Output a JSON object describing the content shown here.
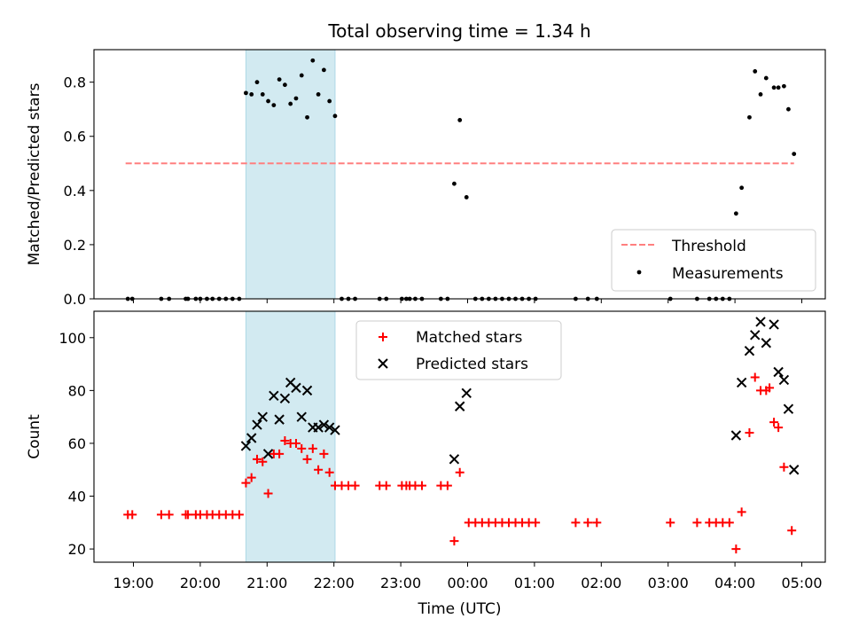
{
  "chart_data": [
    {
      "type": "scatter",
      "title": "Total observing time = 1.34 h",
      "xlabel": "",
      "ylabel": "Matched/Predicted stars",
      "ylim": [
        0,
        0.92
      ],
      "yticks": [
        0.0,
        0.2,
        0.4,
        0.6,
        0.8
      ],
      "ytick_labels": [
        "0.0",
        "0.2",
        "0.4",
        "0.6",
        "0.8"
      ],
      "shaded_span": {
        "x0": "20:41",
        "x1": "22:01",
        "color": "#add8e6"
      },
      "threshold": {
        "name": "Threshold",
        "y": 0.5,
        "x0": "18:53",
        "x1": "04:53",
        "color": "#ff7f7f",
        "style": "dashed"
      },
      "series": [
        {
          "name": "Measurements",
          "marker": "dot",
          "color": "#000000",
          "points": [
            [
              "18:55",
              0
            ],
            [
              "18:59",
              0
            ],
            [
              "19:25",
              0
            ],
            [
              "19:32",
              0
            ],
            [
              "19:47",
              0
            ],
            [
              "19:49",
              0
            ],
            [
              "19:56",
              0
            ],
            [
              "20:00",
              0
            ],
            [
              "20:06",
              0
            ],
            [
              "20:11",
              0
            ],
            [
              "20:17",
              0
            ],
            [
              "20:23",
              0
            ],
            [
              "20:29",
              0
            ],
            [
              "20:35",
              0
            ],
            [
              "20:41",
              0.76
            ],
            [
              "20:46",
              0.755
            ],
            [
              "20:51",
              0.8
            ],
            [
              "20:56",
              0.755
            ],
            [
              "21:01",
              0.73
            ],
            [
              "21:06",
              0.715
            ],
            [
              "21:11",
              0.81
            ],
            [
              "21:16",
              0.79
            ],
            [
              "21:21",
              0.72
            ],
            [
              "21:26",
              0.74
            ],
            [
              "21:31",
              0.825
            ],
            [
              "21:36",
              0.67
            ],
            [
              "21:41",
              0.88
            ],
            [
              "21:46",
              0.755
            ],
            [
              "21:51",
              0.845
            ],
            [
              "21:56",
              0.73
            ],
            [
              "22:01",
              0.675
            ],
            [
              "22:07",
              0
            ],
            [
              "22:13",
              0
            ],
            [
              "22:19",
              0
            ],
            [
              "22:41",
              0
            ],
            [
              "22:47",
              0
            ],
            [
              "23:01",
              0
            ],
            [
              "23:05",
              0
            ],
            [
              "23:08",
              0
            ],
            [
              "23:13",
              0
            ],
            [
              "23:19",
              0
            ],
            [
              "23:36",
              0
            ],
            [
              "23:42",
              0
            ],
            [
              "23:48",
              0.425
            ],
            [
              "23:53",
              0.66
            ],
            [
              "23:59",
              0.375
            ],
            [
              "00:07",
              0
            ],
            [
              "00:13",
              0
            ],
            [
              "00:19",
              0
            ],
            [
              "00:25",
              0
            ],
            [
              "00:31",
              0
            ],
            [
              "00:37",
              0
            ],
            [
              "00:43",
              0
            ],
            [
              "00:49",
              0
            ],
            [
              "00:55",
              0
            ],
            [
              "01:01",
              0
            ],
            [
              "01:37",
              0
            ],
            [
              "01:48",
              0
            ],
            [
              "01:56",
              0
            ],
            [
              "03:02",
              0
            ],
            [
              "03:26",
              0
            ],
            [
              "03:37",
              0
            ],
            [
              "03:43",
              0
            ],
            [
              "03:49",
              0
            ],
            [
              "03:55",
              0
            ],
            [
              "04:01",
              0.315
            ],
            [
              "04:06",
              0.41
            ],
            [
              "04:13",
              0.67
            ],
            [
              "04:18",
              0.84
            ],
            [
              "04:23",
              0.755
            ],
            [
              "04:28",
              0.815
            ],
            [
              "04:35",
              0.78
            ],
            [
              "04:39",
              0.78
            ],
            [
              "04:44",
              0.785
            ],
            [
              "04:48",
              0.7
            ],
            [
              "04:53",
              0.535
            ]
          ]
        }
      ],
      "legend": {
        "position": "lower right",
        "entries": [
          "Threshold",
          "Measurements"
        ]
      }
    },
    {
      "type": "scatter",
      "title": "",
      "xlabel": "Time (UTC)",
      "ylabel": "Count",
      "ylim": [
        15,
        110
      ],
      "yticks": [
        20,
        40,
        60,
        80,
        100
      ],
      "ytick_labels": [
        "20",
        "40",
        "60",
        "80",
        "100"
      ],
      "xtick_labels": [
        "19:00",
        "20:00",
        "21:00",
        "22:00",
        "23:00",
        "00:00",
        "01:00",
        "02:00",
        "03:00",
        "04:00",
        "05:00"
      ],
      "shaded_span": {
        "x0": "20:41",
        "x1": "22:01",
        "color": "#add8e6"
      },
      "series": [
        {
          "name": "Matched stars",
          "marker": "plus",
          "color": "#ff0000",
          "points": [
            [
              "18:55",
              33
            ],
            [
              "18:59",
              33
            ],
            [
              "19:25",
              33
            ],
            [
              "19:32",
              33
            ],
            [
              "19:47",
              33
            ],
            [
              "19:49",
              33
            ],
            [
              "19:56",
              33
            ],
            [
              "20:00",
              33
            ],
            [
              "20:06",
              33
            ],
            [
              "20:11",
              33
            ],
            [
              "20:17",
              33
            ],
            [
              "20:23",
              33
            ],
            [
              "20:29",
              33
            ],
            [
              "20:35",
              33
            ],
            [
              "20:41",
              45
            ],
            [
              "20:46",
              47
            ],
            [
              "20:51",
              54
            ],
            [
              "20:56",
              53
            ],
            [
              "21:01",
              41
            ],
            [
              "21:06",
              56
            ],
            [
              "21:11",
              56
            ],
            [
              "21:16",
              61
            ],
            [
              "21:21",
              60
            ],
            [
              "21:26",
              60
            ],
            [
              "21:31",
              58
            ],
            [
              "21:36",
              54
            ],
            [
              "21:41",
              58
            ],
            [
              "21:46",
              50
            ],
            [
              "21:51",
              56
            ],
            [
              "21:56",
              49
            ],
            [
              "22:01",
              44
            ],
            [
              "22:07",
              44
            ],
            [
              "22:13",
              44
            ],
            [
              "22:19",
              44
            ],
            [
              "22:41",
              44
            ],
            [
              "22:47",
              44
            ],
            [
              "23:01",
              44
            ],
            [
              "23:05",
              44
            ],
            [
              "23:08",
              44
            ],
            [
              "23:13",
              44
            ],
            [
              "23:19",
              44
            ],
            [
              "23:36",
              44
            ],
            [
              "23:42",
              44
            ],
            [
              "23:48",
              23
            ],
            [
              "23:53",
              49
            ],
            [
              "00:01",
              30
            ],
            [
              "00:07",
              30
            ],
            [
              "00:13",
              30
            ],
            [
              "00:19",
              30
            ],
            [
              "00:25",
              30
            ],
            [
              "00:31",
              30
            ],
            [
              "00:37",
              30
            ],
            [
              "00:43",
              30
            ],
            [
              "00:49",
              30
            ],
            [
              "00:55",
              30
            ],
            [
              "01:01",
              30
            ],
            [
              "01:37",
              30
            ],
            [
              "01:48",
              30
            ],
            [
              "01:56",
              30
            ],
            [
              "03:02",
              30
            ],
            [
              "03:26",
              30
            ],
            [
              "03:37",
              30
            ],
            [
              "03:43",
              30
            ],
            [
              "03:49",
              30
            ],
            [
              "03:55",
              30
            ],
            [
              "04:01",
              20
            ],
            [
              "04:06",
              34
            ],
            [
              "04:13",
              64
            ],
            [
              "04:18",
              85
            ],
            [
              "04:23",
              80
            ],
            [
              "04:28",
              80
            ],
            [
              "04:31",
              81
            ],
            [
              "04:35",
              68
            ],
            [
              "04:39",
              66
            ],
            [
              "04:44",
              51
            ],
            [
              "04:51",
              27
            ]
          ]
        },
        {
          "name": "Predicted stars",
          "marker": "x",
          "color": "#000000",
          "points": [
            [
              "20:41",
              59
            ],
            [
              "20:46",
              62
            ],
            [
              "20:51",
              67
            ],
            [
              "20:56",
              70
            ],
            [
              "21:01",
              56
            ],
            [
              "21:06",
              78
            ],
            [
              "21:11",
              69
            ],
            [
              "21:16",
              77
            ],
            [
              "21:21",
              83
            ],
            [
              "21:26",
              81
            ],
            [
              "21:31",
              70
            ],
            [
              "21:36",
              80
            ],
            [
              "21:41",
              66
            ],
            [
              "21:46",
              66
            ],
            [
              "21:51",
              67
            ],
            [
              "21:56",
              66
            ],
            [
              "22:01",
              65
            ],
            [
              "23:48",
              54
            ],
            [
              "23:53",
              74
            ],
            [
              "23:59",
              79
            ],
            [
              "04:01",
              63
            ],
            [
              "04:06",
              83
            ],
            [
              "04:13",
              95
            ],
            [
              "04:18",
              101
            ],
            [
              "04:23",
              106
            ],
            [
              "04:28",
              98
            ],
            [
              "04:35",
              105
            ],
            [
              "04:39",
              87
            ],
            [
              "04:44",
              84
            ],
            [
              "04:48",
              73
            ],
            [
              "04:53",
              50
            ]
          ]
        }
      ],
      "legend": {
        "position": "upper center",
        "entries": [
          "Matched stars",
          "Predicted stars"
        ]
      }
    }
  ]
}
